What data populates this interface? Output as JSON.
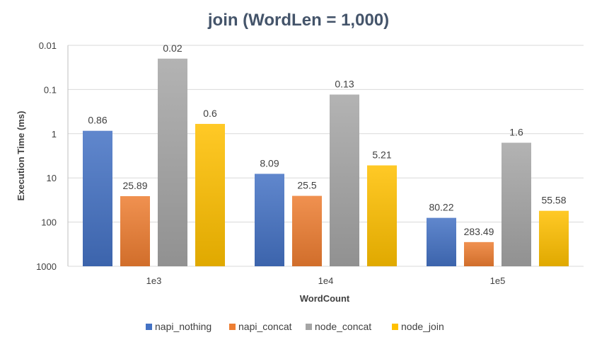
{
  "chart_data": {
    "type": "bar",
    "title": "join (WordLen = 1,000)",
    "xlabel": "WordCount",
    "ylabel": "Execution Time (ms)",
    "y_scale": "log",
    "y_axis_reversed": true,
    "ylim": [
      0.01,
      1000
    ],
    "y_ticks": [
      "0.01",
      "0.1",
      "1",
      "10",
      "100",
      "1000"
    ],
    "categories": [
      "1e3",
      "1e4",
      "1e5"
    ],
    "series": [
      {
        "name": "napi_nothing",
        "color": "#4472c4",
        "values": [
          0.86,
          8.09,
          80.22
        ]
      },
      {
        "name": "napi_concat",
        "color": "#ed7d31",
        "values": [
          25.89,
          25.5,
          283.49
        ]
      },
      {
        "name": "node_concat",
        "color": "#a5a5a5",
        "values": [
          0.02,
          0.13,
          1.6
        ]
      },
      {
        "name": "node_join",
        "color": "#ffc000",
        "values": [
          0.6,
          5.21,
          55.58
        ]
      }
    ],
    "grid": true,
    "legend_position": "bottom"
  }
}
